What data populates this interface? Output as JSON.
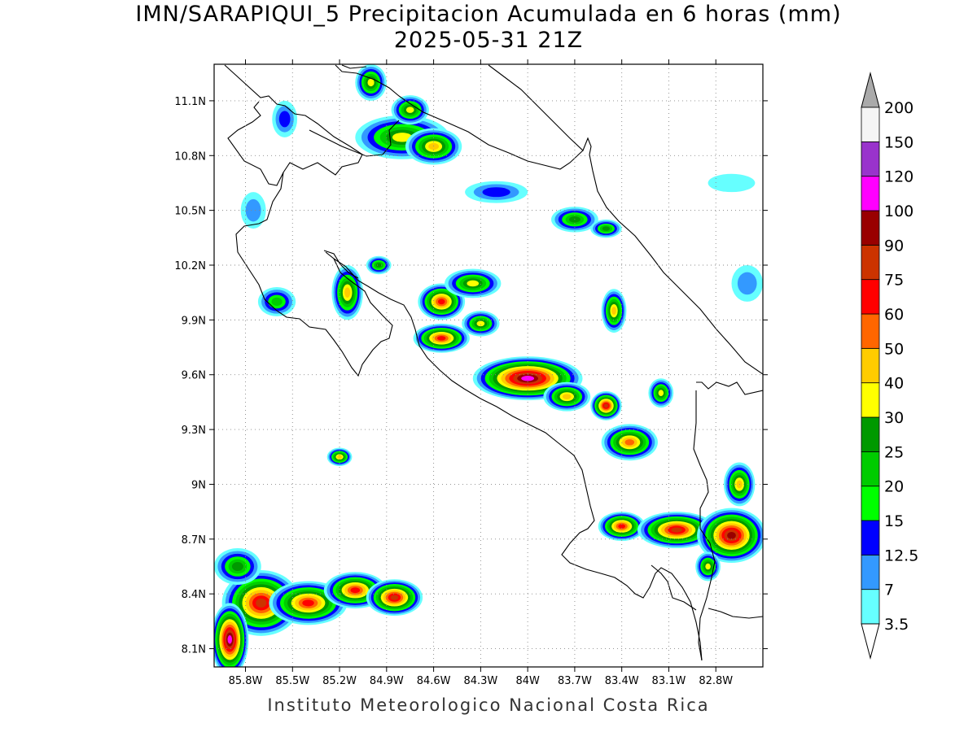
{
  "title": "IMN/SARAPIQUI_5 Precipitacion Acumulada en 6 horas (mm)",
  "subtitle": "2025-05-31 21Z",
  "footer": "Instituto Meteorologico Nacional Costa Rica",
  "map": {
    "lon_range": [
      -86.0,
      -82.5
    ],
    "lat_range": [
      8.0,
      11.3
    ],
    "lat_ticks": [
      {
        "value": 11.1,
        "label": "11.1N"
      },
      {
        "value": 10.8,
        "label": "10.8N"
      },
      {
        "value": 10.5,
        "label": "10.5N"
      },
      {
        "value": 10.2,
        "label": "10.2N"
      },
      {
        "value": 9.9,
        "label": "9.9N"
      },
      {
        "value": 9.6,
        "label": "9.6N"
      },
      {
        "value": 9.3,
        "label": "9.3N"
      },
      {
        "value": 9.0,
        "label": "9N"
      },
      {
        "value": 8.7,
        "label": "8.7N"
      },
      {
        "value": 8.4,
        "label": "8.4N"
      },
      {
        "value": 8.1,
        "label": "8.1N"
      }
    ],
    "lon_ticks": [
      {
        "value": -85.8,
        "label": "85.8W"
      },
      {
        "value": -85.5,
        "label": "85.5W"
      },
      {
        "value": -85.2,
        "label": "85.2W"
      },
      {
        "value": -84.9,
        "label": "84.9W"
      },
      {
        "value": -84.6,
        "label": "84.6W"
      },
      {
        "value": -84.3,
        "label": "84.3W"
      },
      {
        "value": -84.0,
        "label": "84W"
      },
      {
        "value": -83.7,
        "label": "83.7W"
      },
      {
        "value": -83.4,
        "label": "83.4W"
      },
      {
        "value": -83.1,
        "label": "83.1W"
      },
      {
        "value": -82.8,
        "label": "82.8W"
      }
    ],
    "grid": "dotted",
    "legend_position": "right"
  },
  "legend": {
    "unit": "mm",
    "levels": [
      {
        "label": "3.5",
        "color": "#66ffff"
      },
      {
        "label": "7",
        "color": "#3399ff"
      },
      {
        "label": "12.5",
        "color": "#0000ff"
      },
      {
        "label": "15",
        "color": "#00ff00"
      },
      {
        "label": "20",
        "color": "#00cc00"
      },
      {
        "label": "25",
        "color": "#009900"
      },
      {
        "label": "30",
        "color": "#ffff00"
      },
      {
        "label": "40",
        "color": "#ffcc00"
      },
      {
        "label": "50",
        "color": "#ff6600"
      },
      {
        "label": "60",
        "color": "#ff0000"
      },
      {
        "label": "75",
        "color": "#cc3300"
      },
      {
        "label": "90",
        "color": "#990000"
      },
      {
        "label": "100",
        "color": "#ff00ff"
      },
      {
        "label": "120",
        "color": "#9933cc"
      },
      {
        "label": "150",
        "color": "#f5f5f5"
      },
      {
        "label": "200",
        "color": "#aaaaaa"
      }
    ],
    "band_colors": [
      "#66ffff",
      "#3399ff",
      "#0000ff",
      "#00ff00",
      "#00cc00",
      "#009900",
      "#ffff00",
      "#ffcc00",
      "#ff6600",
      "#ff0000",
      "#cc3300",
      "#990000",
      "#ff00ff",
      "#9933cc",
      "#f5f5f5"
    ],
    "over_color": "#aaaaaa",
    "under_color": "#ffffff"
  },
  "rain_cells": [
    {
      "lon": -85.7,
      "lat": 8.35,
      "rx": 0.25,
      "ry": 0.18,
      "peak": 11
    },
    {
      "lon": -85.9,
      "lat": 8.15,
      "rx": 0.12,
      "ry": 0.2,
      "peak": 13
    },
    {
      "lon": -85.4,
      "lat": 8.35,
      "rx": 0.25,
      "ry": 0.12,
      "peak": 10
    },
    {
      "lon": -85.1,
      "lat": 8.42,
      "rx": 0.2,
      "ry": 0.1,
      "peak": 10
    },
    {
      "lon": -84.85,
      "lat": 8.38,
      "rx": 0.18,
      "ry": 0.1,
      "peak": 11
    },
    {
      "lon": -85.85,
      "lat": 8.55,
      "rx": 0.15,
      "ry": 0.1,
      "peak": 6
    },
    {
      "lon": -85.2,
      "lat": 9.15,
      "rx": 0.08,
      "ry": 0.05,
      "peak": 8
    },
    {
      "lon": -85.6,
      "lat": 10.0,
      "rx": 0.12,
      "ry": 0.08,
      "peak": 5
    },
    {
      "lon": -85.15,
      "lat": 10.05,
      "rx": 0.1,
      "ry": 0.15,
      "peak": 8
    },
    {
      "lon": -84.55,
      "lat": 10.0,
      "rx": 0.15,
      "ry": 0.1,
      "peak": 10
    },
    {
      "lon": -84.35,
      "lat": 10.1,
      "rx": 0.18,
      "ry": 0.08,
      "peak": 7
    },
    {
      "lon": -84.55,
      "lat": 9.8,
      "rx": 0.18,
      "ry": 0.08,
      "peak": 10
    },
    {
      "lon": -84.3,
      "lat": 9.88,
      "rx": 0.12,
      "ry": 0.07,
      "peak": 7
    },
    {
      "lon": -84.0,
      "lat": 9.58,
      "rx": 0.35,
      "ry": 0.12,
      "peak": 13
    },
    {
      "lon": -83.75,
      "lat": 9.48,
      "rx": 0.15,
      "ry": 0.08,
      "peak": 8
    },
    {
      "lon": -83.5,
      "lat": 9.43,
      "rx": 0.1,
      "ry": 0.08,
      "peak": 11
    },
    {
      "lon": -83.35,
      "lat": 9.23,
      "rx": 0.18,
      "ry": 0.1,
      "peak": 9
    },
    {
      "lon": -83.45,
      "lat": 9.95,
      "rx": 0.08,
      "ry": 0.12,
      "peak": 8
    },
    {
      "lon": -83.4,
      "lat": 8.77,
      "rx": 0.15,
      "ry": 0.08,
      "peak": 10
    },
    {
      "lon": -83.05,
      "lat": 8.75,
      "rx": 0.25,
      "ry": 0.1,
      "peak": 11
    },
    {
      "lon": -82.7,
      "lat": 8.72,
      "rx": 0.22,
      "ry": 0.15,
      "peak": 12
    },
    {
      "lon": -82.65,
      "lat": 9.0,
      "rx": 0.1,
      "ry": 0.12,
      "peak": 8
    },
    {
      "lon": -84.8,
      "lat": 10.9,
      "rx": 0.3,
      "ry": 0.12,
      "peak": 7
    },
    {
      "lon": -84.6,
      "lat": 10.85,
      "rx": 0.18,
      "ry": 0.1,
      "peak": 8
    },
    {
      "lon": -84.75,
      "lat": 11.05,
      "rx": 0.12,
      "ry": 0.08,
      "peak": 7
    },
    {
      "lon": -85.0,
      "lat": 11.2,
      "rx": 0.1,
      "ry": 0.1,
      "peak": 7
    },
    {
      "lon": -83.7,
      "lat": 10.45,
      "rx": 0.15,
      "ry": 0.07,
      "peak": 6
    },
    {
      "lon": -83.5,
      "lat": 10.4,
      "rx": 0.1,
      "ry": 0.05,
      "peak": 6
    },
    {
      "lon": -84.95,
      "lat": 10.2,
      "rx": 0.08,
      "ry": 0.05,
      "peak": 6
    },
    {
      "lon": -83.15,
      "lat": 9.5,
      "rx": 0.08,
      "ry": 0.08,
      "peak": 7
    },
    {
      "lon": -82.85,
      "lat": 8.55,
      "rx": 0.08,
      "ry": 0.08,
      "peak": 7
    },
    {
      "lon": -85.55,
      "lat": 11.0,
      "rx": 0.08,
      "ry": 0.1,
      "peak": 3
    },
    {
      "lon": -82.7,
      "lat": 10.65,
      "rx": 0.15,
      "ry": 0.05,
      "peak": 1
    },
    {
      "lon": -82.6,
      "lat": 10.1,
      "rx": 0.1,
      "ry": 0.1,
      "peak": 2
    },
    {
      "lon": -84.2,
      "lat": 10.6,
      "rx": 0.2,
      "ry": 0.06,
      "peak": 3
    },
    {
      "lon": -85.75,
      "lat": 10.5,
      "rx": 0.08,
      "ry": 0.1,
      "peak": 2
    }
  ]
}
